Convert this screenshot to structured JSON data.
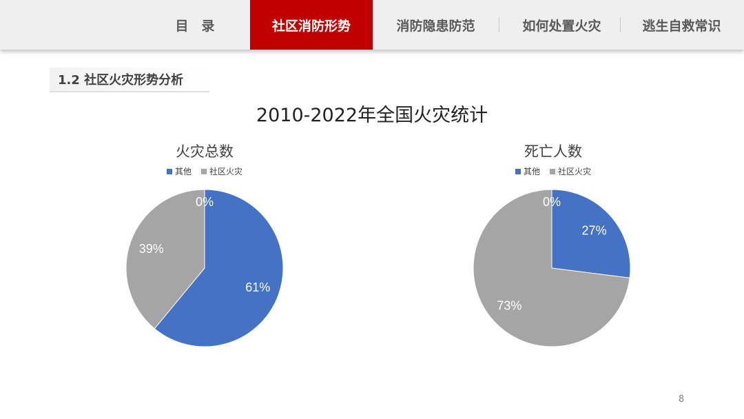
{
  "nav": {
    "items": [
      {
        "label": "目　录",
        "active": false
      },
      {
        "label": "社区消防形势",
        "active": true
      },
      {
        "label": "消防隐患防范",
        "active": false
      },
      {
        "label": "如何处置火灾",
        "active": false
      },
      {
        "label": "逃生自救常识",
        "active": false
      }
    ]
  },
  "section_title": "1.2 社区火灾形势分析",
  "main_title": "2010-2022年全国火灾统计",
  "page_number": "8",
  "colors": {
    "其他": "#4472c4",
    "社区火灾": "#a5a5a5",
    "accent": "#c00000"
  },
  "chart_data": [
    {
      "type": "pie",
      "title": "火灾总数",
      "legend": [
        "其他",
        "社区火灾"
      ],
      "legend_placement": "top",
      "slices": [
        {
          "name": "其他",
          "value": 61,
          "label": "61%"
        },
        {
          "name": "社区火灾",
          "value": 39,
          "label": "39%"
        },
        {
          "name": "",
          "value": 0,
          "label": "0%"
        }
      ]
    },
    {
      "type": "pie",
      "title": "死亡人数",
      "legend": [
        "其他",
        "社区火灾"
      ],
      "legend_placement": "top",
      "slices": [
        {
          "name": "其他",
          "value": 27,
          "label": "27%"
        },
        {
          "name": "社区火灾",
          "value": 73,
          "label": "73%"
        },
        {
          "name": "",
          "value": 0,
          "label": "0%"
        }
      ]
    }
  ]
}
